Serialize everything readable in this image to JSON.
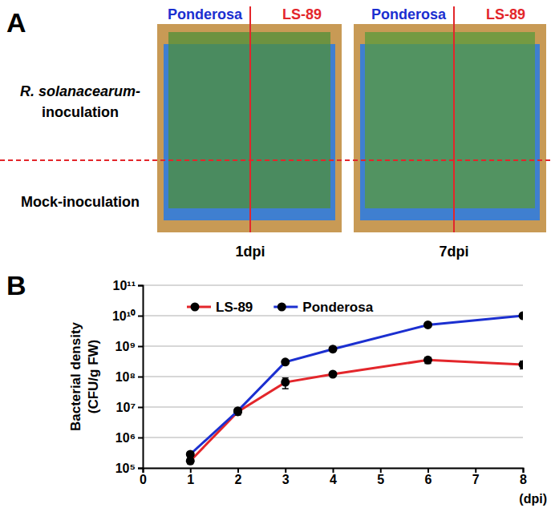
{
  "panel_a": {
    "label": "A",
    "columns": [
      "Ponderosa",
      "LS-89"
    ],
    "column_colors": [
      "#1b2fd0",
      "#e3262b"
    ],
    "rows": [
      [
        "R. solanacearum-",
        "inoculation"
      ],
      [
        "Mock-inoculation"
      ]
    ],
    "times": [
      "1dpi",
      "7dpi"
    ]
  },
  "chart_data": {
    "type": "line",
    "panel_label": "B",
    "x": [
      1,
      2,
      3,
      4,
      6,
      8
    ],
    "xlim": [
      0,
      8
    ],
    "xticks": [
      0,
      1,
      2,
      3,
      4,
      5,
      6,
      7,
      8
    ],
    "x_label": "(dpi)",
    "y_label": [
      "Bacterial density",
      "(CFU/g FW)"
    ],
    "log": "y",
    "ylim": [
      100000,
      100000000000
    ],
    "yticks": [
      {
        "value": 100000,
        "label": "10⁵"
      },
      {
        "value": 1000000,
        "label": "10⁶"
      },
      {
        "value": 10000000,
        "label": "10⁷"
      },
      {
        "value": 100000000,
        "label": "10⁸"
      },
      {
        "value": 1000000000,
        "label": "10⁹"
      },
      {
        "value": 10000000000,
        "label": "10¹⁰"
      },
      {
        "value": 100000000000,
        "label": "10¹¹"
      }
    ],
    "grid": "y",
    "legend": "top-left",
    "series": [
      {
        "name": "LS-89",
        "color": "#e3262b",
        "marker": "circle",
        "values": [
          170000,
          7000000,
          65000000,
          120000000,
          350000000,
          250000000
        ],
        "errors": [
          30000,
          1500000,
          25000000,
          20000000,
          80000000,
          70000000
        ]
      },
      {
        "name": "Ponderosa",
        "color": "#1b2fd0",
        "marker": "circle",
        "values": [
          280000,
          7500000,
          300000000,
          800000000,
          5000000000,
          10000000000
        ],
        "errors": [
          50000,
          1000000,
          40000000,
          150000000,
          500000000,
          1500000000
        ]
      }
    ]
  }
}
